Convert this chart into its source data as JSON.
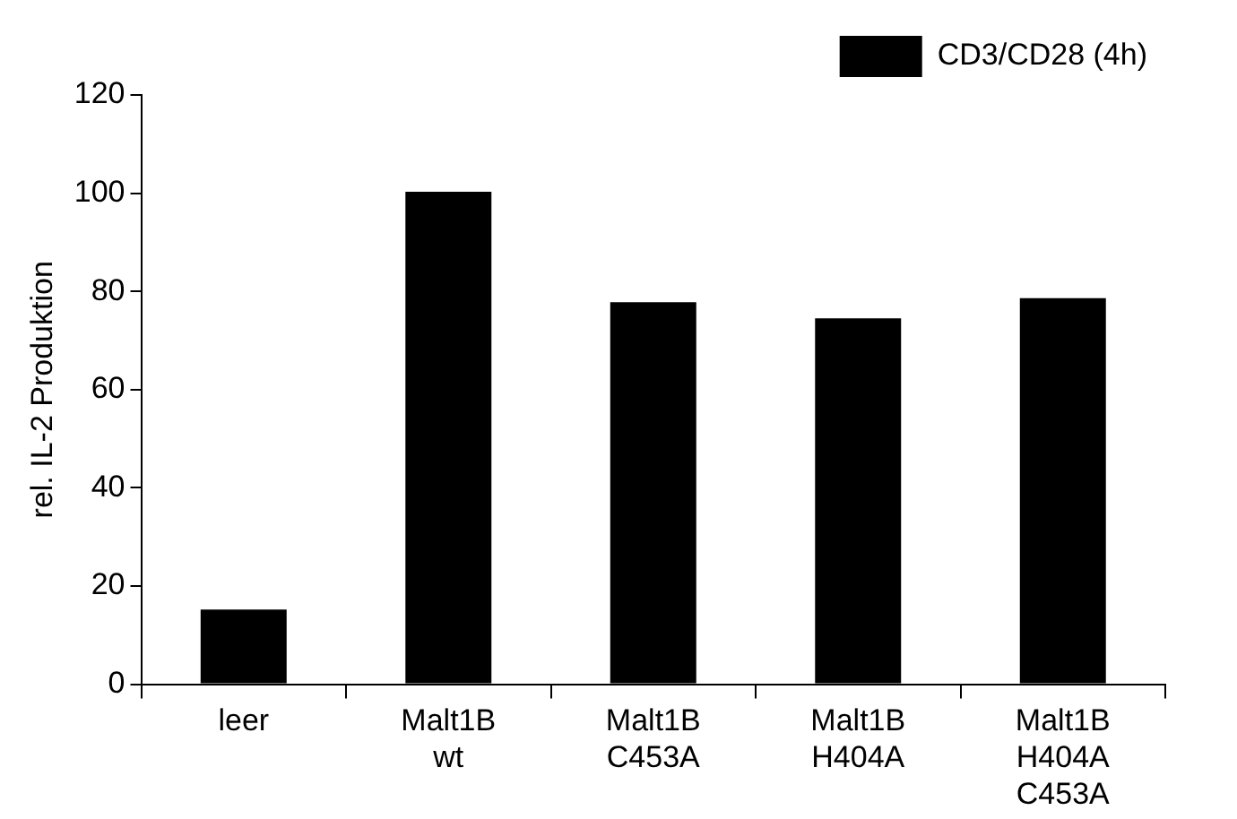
{
  "chart_data": {
    "type": "bar",
    "ylabel": "rel. IL-2 Produktion",
    "categories": [
      "leer",
      "Malt1B wt",
      "Malt1B C453A",
      "Malt1B H404A",
      "Malt1B H404A C453A"
    ],
    "series": [
      {
        "name": "CD3/CD28 (4h)",
        "color": "#000000",
        "values": [
          15.2,
          100.3,
          77.8,
          74.5,
          78.6
        ]
      }
    ],
    "ylim": [
      0,
      120
    ],
    "yticks": [
      0,
      20,
      40,
      60,
      80,
      100,
      120
    ],
    "grid": false,
    "legend": "top right"
  }
}
